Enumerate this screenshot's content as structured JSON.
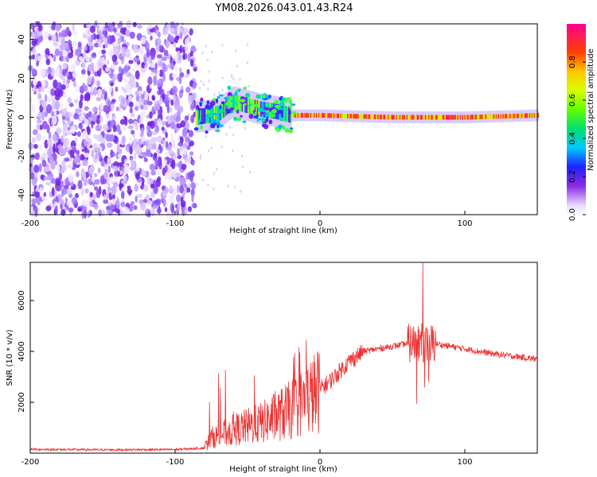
{
  "title": "YM08.2026.043.01.43.R24",
  "charts": [
    {
      "type": "heatmap",
      "xlabel": "Height of straight line (km)",
      "ylabel": "Frequency (Hz)",
      "xlim": [
        -200,
        150
      ],
      "ylim": [
        -50,
        48
      ],
      "xticks": [
        -200,
        -100,
        0,
        100
      ],
      "yticks": [
        -40,
        -20,
        0,
        20,
        40
      ],
      "colorbar": {
        "label": "Normalized spectral amplitude",
        "range": [
          0,
          1
        ],
        "ticks": [
          0.0,
          0.2,
          0.4,
          0.6,
          0.8
        ],
        "tick_labels": [
          "0.0",
          "0.2",
          "0.4",
          "0.6",
          "0.8"
        ]
      },
      "noise_region_x": [
        -200,
        -86
      ],
      "signal_description": "broad scatter of weak amplitudes below -86 km; concentrated band near 0 Hz above -86 km",
      "band_center_hz": [
        {
          "x": -86,
          "f": 0
        },
        {
          "x": -70,
          "f": 2
        },
        {
          "x": -60,
          "f": 8
        },
        {
          "x": -50,
          "f": 6
        },
        {
          "x": -40,
          "f": 4
        },
        {
          "x": -30,
          "f": 3
        },
        {
          "x": -20,
          "f": 1
        },
        {
          "x": 0,
          "f": 1
        },
        {
          "x": 50,
          "f": 0
        },
        {
          "x": 100,
          "f": 0
        },
        {
          "x": 150,
          "f": 1
        }
      ]
    },
    {
      "type": "line",
      "xlabel": "Height of straight line (km)",
      "ylabel": "SNR (10 * v/v)",
      "xlim": [
        -200,
        150
      ],
      "ylim": [
        0,
        7500
      ],
      "xticks": [
        -200,
        -100,
        0,
        100
      ],
      "yticks": [
        2000,
        4000,
        6000
      ],
      "color": "#ee3333",
      "envelope": [
        {
          "x": -200,
          "y": 150
        },
        {
          "x": -150,
          "y": 130
        },
        {
          "x": -100,
          "y": 140
        },
        {
          "x": -80,
          "y": 200
        },
        {
          "x": -75,
          "y": 600
        },
        {
          "x": -60,
          "y": 900
        },
        {
          "x": -40,
          "y": 1200
        },
        {
          "x": -20,
          "y": 1700
        },
        {
          "x": 0,
          "y": 2500
        },
        {
          "x": 10,
          "y": 3000
        },
        {
          "x": 20,
          "y": 3600
        },
        {
          "x": 30,
          "y": 4000
        },
        {
          "x": 50,
          "y": 4200
        },
        {
          "x": 60,
          "y": 4300
        },
        {
          "x": 70,
          "y": 4300
        },
        {
          "x": 80,
          "y": 4300
        },
        {
          "x": 100,
          "y": 4100
        },
        {
          "x": 120,
          "y": 3900
        },
        {
          "x": 150,
          "y": 3700
        }
      ],
      "peak": {
        "x": 71,
        "y": 7500
      }
    }
  ]
}
